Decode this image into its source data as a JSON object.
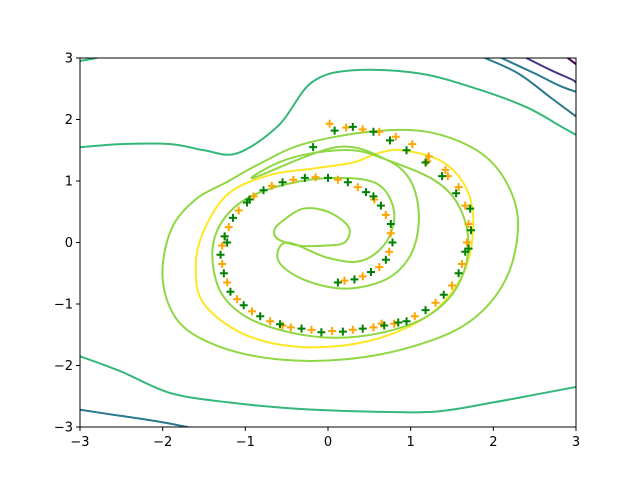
{
  "chart_data": {
    "type": "scatter",
    "title": "",
    "xlabel": "",
    "ylabel": "",
    "xlim": [
      -3,
      3
    ],
    "ylim": [
      -3,
      3
    ],
    "xticks": [
      "−3",
      "−2",
      "−1",
      "0",
      "1",
      "2",
      "3"
    ],
    "yticks": [
      "−3",
      "−2",
      "−1",
      "0",
      "1",
      "2",
      "3"
    ],
    "xtick_values": [
      -3,
      -2,
      -1,
      0,
      1,
      2,
      3
    ],
    "ytick_values": [
      -3,
      -2,
      -1,
      0,
      1,
      2,
      3
    ],
    "grid": false,
    "background_contours": [
      {
        "color": "#fde725",
        "closed": true,
        "points": [
          [
            0.9,
            1.5
          ],
          [
            1.4,
            1.3
          ],
          [
            1.7,
            0.8
          ],
          [
            1.75,
            0.1
          ],
          [
            1.6,
            -0.6
          ],
          [
            1.2,
            -1.2
          ],
          [
            0.5,
            -1.6
          ],
          [
            -0.3,
            -1.7
          ],
          [
            -1.0,
            -1.5
          ],
          [
            -1.5,
            -1.0
          ],
          [
            -1.6,
            -0.4
          ],
          [
            -1.5,
            0.2
          ],
          [
            -1.2,
            0.8
          ],
          [
            -0.7,
            1.1
          ],
          [
            -0.2,
            1.2
          ],
          [
            0.3,
            1.3
          ],
          [
            0.6,
            1.45
          ]
        ]
      },
      {
        "color": "#8fd744",
        "closed": true,
        "points": [
          [
            -0.8,
            1.3
          ],
          [
            -0.3,
            1.6
          ],
          [
            0.5,
            1.8
          ],
          [
            1.2,
            1.8
          ],
          [
            1.8,
            1.5
          ],
          [
            2.15,
            1.0
          ],
          [
            2.3,
            0.3
          ],
          [
            2.15,
            -0.6
          ],
          [
            1.7,
            -1.3
          ],
          [
            1.0,
            -1.7
          ],
          [
            0.2,
            -1.9
          ],
          [
            -0.6,
            -1.9
          ],
          [
            -1.3,
            -1.7
          ],
          [
            -1.8,
            -1.3
          ],
          [
            -2.0,
            -0.6
          ],
          [
            -1.9,
            0.2
          ],
          [
            -1.6,
            0.7
          ],
          [
            -1.2,
            1.0
          ]
        ]
      },
      {
        "color": "#8fd744",
        "closed": true,
        "points": [
          [
            0.1,
            1.55
          ],
          [
            0.7,
            1.35
          ],
          [
            1.0,
            1.0
          ],
          [
            1.1,
            0.4
          ],
          [
            1.0,
            -0.2
          ],
          [
            0.7,
            -0.6
          ],
          [
            0.2,
            -0.75
          ],
          [
            -0.3,
            -0.6
          ],
          [
            -0.6,
            -0.3
          ],
          [
            -0.5,
            0.0
          ],
          [
            0.0,
            -0.25
          ],
          [
            0.4,
            -0.3
          ],
          [
            0.7,
            0.0
          ],
          [
            0.8,
            0.5
          ],
          [
            0.6,
            0.95
          ],
          [
            0.1,
            1.05
          ],
          [
            -0.5,
            0.95
          ],
          [
            -1.0,
            0.7
          ],
          [
            -1.3,
            0.3
          ],
          [
            -1.4,
            -0.2
          ],
          [
            -1.3,
            -0.8
          ],
          [
            -1.0,
            -1.2
          ],
          [
            -0.5,
            -1.45
          ],
          [
            0.1,
            -1.55
          ],
          [
            0.7,
            -1.45
          ],
          [
            1.2,
            -1.2
          ],
          [
            1.55,
            -0.75
          ],
          [
            1.7,
            -0.1
          ],
          [
            1.6,
            0.55
          ],
          [
            1.3,
            1.0
          ],
          [
            0.7,
            1.35
          ],
          [
            0.3,
            1.5
          ],
          [
            -0.2,
            1.45
          ],
          [
            -0.6,
            1.3
          ],
          [
            -0.9,
            1.05
          ]
        ]
      },
      {
        "color": "#8fd744",
        "closed": true,
        "points": [
          [
            -0.55,
            0.35
          ],
          [
            -0.3,
            0.55
          ],
          [
            0.0,
            0.5
          ],
          [
            0.25,
            0.25
          ],
          [
            0.2,
            0.0
          ],
          [
            -0.05,
            -0.05
          ],
          [
            -0.35,
            -0.05
          ],
          [
            -0.6,
            0.05
          ],
          [
            -0.65,
            0.2
          ]
        ]
      },
      {
        "color": "#35b779",
        "closed": false,
        "points": [
          [
            -3.0,
            1.55
          ],
          [
            -2.5,
            1.6
          ],
          [
            -1.9,
            1.6
          ],
          [
            -1.5,
            1.5
          ],
          [
            -1.1,
            1.45
          ],
          [
            -0.6,
            1.9
          ],
          [
            -0.2,
            2.6
          ],
          [
            0.3,
            2.8
          ],
          [
            1.1,
            2.75
          ],
          [
            1.8,
            2.5
          ],
          [
            2.4,
            2.2
          ],
          [
            2.8,
            1.9
          ],
          [
            3.0,
            1.75
          ]
        ]
      },
      {
        "color": "#35b779",
        "closed": false,
        "points": [
          [
            -3.0,
            -1.85
          ],
          [
            -2.5,
            -2.1
          ],
          [
            -1.9,
            -2.45
          ],
          [
            -1.2,
            -2.6
          ],
          [
            -0.4,
            -2.7
          ],
          [
            0.5,
            -2.75
          ],
          [
            1.3,
            -2.75
          ],
          [
            2.0,
            -2.6
          ],
          [
            2.6,
            -2.45
          ],
          [
            3.0,
            -2.35
          ]
        ]
      },
      {
        "color": "#35b779",
        "closed": false,
        "points": [
          [
            -3.0,
            2.95
          ],
          [
            -2.8,
            3.0
          ]
        ]
      },
      {
        "color": "#2a788e",
        "closed": false,
        "points": [
          [
            -3.0,
            -2.72
          ],
          [
            -2.6,
            -2.8
          ],
          [
            -2.1,
            -2.9
          ],
          [
            -1.7,
            -3.0
          ]
        ]
      },
      {
        "color": "#2a788e",
        "closed": false,
        "points": [
          [
            1.9,
            3.0
          ],
          [
            2.3,
            2.75
          ],
          [
            2.7,
            2.35
          ],
          [
            3.0,
            2.05
          ]
        ]
      },
      {
        "color": "#2a788e",
        "closed": false,
        "points": [
          [
            2.1,
            3.0
          ],
          [
            2.5,
            2.75
          ],
          [
            2.8,
            2.55
          ],
          [
            3.0,
            2.45
          ]
        ]
      },
      {
        "color": "#443983",
        "closed": false,
        "points": [
          [
            2.4,
            3.0
          ],
          [
            2.7,
            2.8
          ],
          [
            2.95,
            2.65
          ],
          [
            3.0,
            2.6
          ]
        ]
      },
      {
        "color": "#440154",
        "closed": false,
        "points": [
          [
            2.9,
            3.0
          ],
          [
            3.0,
            2.9
          ]
        ]
      }
    ],
    "series": [
      {
        "marker": "+",
        "color": "#ffa500",
        "points": [
          [
            0.02,
            1.93
          ],
          [
            0.22,
            1.87
          ],
          [
            0.42,
            1.84
          ],
          [
            0.62,
            1.8
          ],
          [
            0.82,
            1.72
          ],
          [
            1.02,
            1.6
          ],
          [
            1.22,
            1.4
          ],
          [
            1.42,
            1.18
          ],
          [
            1.58,
            0.9
          ],
          [
            1.66,
            0.6
          ],
          [
            1.7,
            0.3
          ],
          [
            1.68,
            0.0
          ],
          [
            1.62,
            -0.35
          ],
          [
            1.5,
            -0.7
          ],
          [
            1.3,
            -0.98
          ],
          [
            1.05,
            -1.2
          ],
          [
            0.8,
            -1.32
          ],
          [
            0.55,
            -1.38
          ],
          [
            0.3,
            -1.42
          ],
          [
            0.05,
            -1.44
          ],
          [
            -0.2,
            -1.42
          ],
          [
            -0.45,
            -1.38
          ],
          [
            -0.7,
            -1.28
          ],
          [
            -0.92,
            -1.12
          ],
          [
            -1.1,
            -0.92
          ],
          [
            -1.22,
            -0.65
          ],
          [
            -1.28,
            -0.35
          ],
          [
            -1.28,
            -0.05
          ],
          [
            -1.2,
            0.25
          ],
          [
            -1.08,
            0.52
          ],
          [
            -0.9,
            0.75
          ],
          [
            -0.68,
            0.92
          ],
          [
            -0.42,
            1.02
          ],
          [
            -0.15,
            1.06
          ],
          [
            0.12,
            1.02
          ],
          [
            0.36,
            0.9
          ],
          [
            0.56,
            0.7
          ],
          [
            0.7,
            0.45
          ],
          [
            0.76,
            0.15
          ],
          [
            0.74,
            -0.15
          ],
          [
            0.62,
            -0.4
          ],
          [
            0.42,
            -0.55
          ],
          [
            0.2,
            -0.62
          ],
          [
            1.2,
            1.32
          ],
          [
            1.45,
            1.08
          ],
          [
            -1.25,
            0.1
          ],
          [
            0.65,
            -1.32
          ],
          [
            -0.55,
            -1.35
          ]
        ]
      },
      {
        "marker": "+",
        "color": "#008000",
        "points": [
          [
            0.08,
            1.82
          ],
          [
            0.3,
            1.88
          ],
          [
            0.55,
            1.8
          ],
          [
            0.75,
            1.66
          ],
          [
            0.95,
            1.5
          ],
          [
            1.18,
            1.3
          ],
          [
            1.38,
            1.08
          ],
          [
            1.55,
            0.8
          ],
          [
            1.72,
            0.55
          ],
          [
            1.73,
            0.2
          ],
          [
            1.66,
            -0.15
          ],
          [
            1.58,
            -0.5
          ],
          [
            1.4,
            -0.85
          ],
          [
            1.18,
            -1.1
          ],
          [
            0.95,
            -1.28
          ],
          [
            0.68,
            -1.35
          ],
          [
            0.42,
            -1.4
          ],
          [
            0.18,
            -1.45
          ],
          [
            -0.08,
            -1.46
          ],
          [
            -0.32,
            -1.4
          ],
          [
            -0.58,
            -1.33
          ],
          [
            -0.82,
            -1.2
          ],
          [
            -1.02,
            -1.02
          ],
          [
            -1.18,
            -0.8
          ],
          [
            -1.26,
            -0.5
          ],
          [
            -1.3,
            -0.2
          ],
          [
            -1.25,
            0.1
          ],
          [
            -1.15,
            0.4
          ],
          [
            -0.98,
            0.65
          ],
          [
            -0.78,
            0.85
          ],
          [
            -0.55,
            0.98
          ],
          [
            -0.28,
            1.05
          ],
          [
            0.0,
            1.05
          ],
          [
            0.24,
            0.98
          ],
          [
            0.46,
            0.82
          ],
          [
            0.64,
            0.6
          ],
          [
            0.76,
            0.3
          ],
          [
            0.78,
            0.0
          ],
          [
            0.7,
            -0.28
          ],
          [
            0.52,
            -0.48
          ],
          [
            0.32,
            -0.6
          ],
          [
            0.12,
            -0.65
          ],
          [
            -0.18,
            1.55
          ],
          [
            1.7,
            -0.1
          ],
          [
            0.85,
            -1.3
          ],
          [
            -0.95,
            0.7
          ],
          [
            -1.22,
            0.0
          ],
          [
            0.55,
            0.75
          ]
        ]
      }
    ]
  }
}
